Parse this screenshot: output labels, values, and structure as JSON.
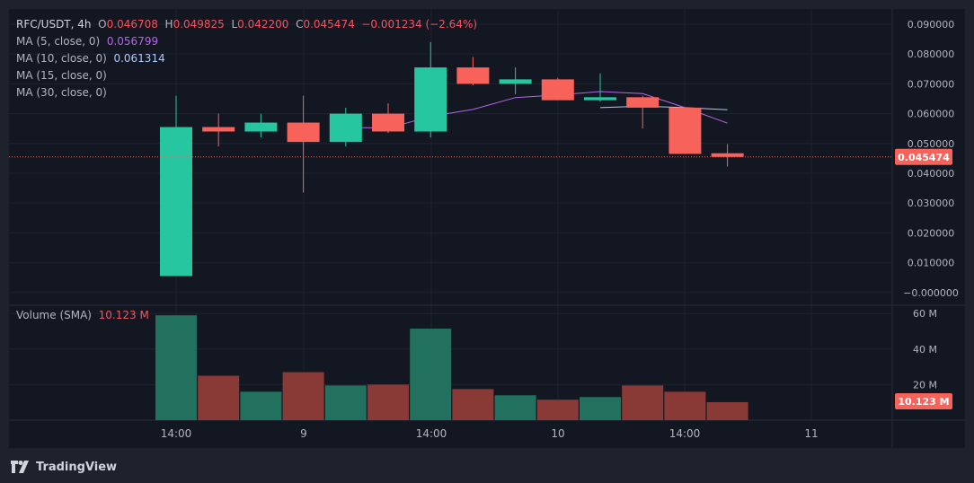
{
  "header": {
    "symbol": "RFC/USDT",
    "interval": "4h",
    "open_label": "O",
    "open": "0.046708",
    "high_label": "H",
    "high": "0.049825",
    "low_label": "L",
    "low": "0.042200",
    "close_label": "C",
    "close": "0.045474",
    "change": "−0.001234 (−2.64%)"
  },
  "indicators": [
    {
      "label": "MA (5, close, 0)",
      "value": "0.056799",
      "color": "#b667e5"
    },
    {
      "label": "MA (10, close, 0)",
      "value": "0.061314",
      "color": "#aec8f5"
    },
    {
      "label": "MA (15, close, 0)",
      "value": "",
      "color": "#d1d4dc"
    },
    {
      "label": "MA (30, close, 0)",
      "value": "",
      "color": "#d1d4dc"
    }
  ],
  "volume_legend": {
    "label": "Volume (SMA)",
    "value": "10.123 M"
  },
  "price_axis": {
    "ticks": [
      "0.090000",
      "0.080000",
      "0.070000",
      "0.060000",
      "0.050000",
      "0.040000",
      "0.030000",
      "0.020000",
      "0.010000",
      "−0.000000"
    ],
    "tick_values": [
      0.09,
      0.08,
      0.07,
      0.06,
      0.05,
      0.04,
      0.03,
      0.02,
      0.01,
      0
    ],
    "last_price_label": "0.045474"
  },
  "volume_axis": {
    "ticks": [
      "60 M",
      "40 M",
      "20 M"
    ],
    "tick_values": [
      60,
      40,
      20
    ],
    "last_volume_label": "10.123 M"
  },
  "time_axis": {
    "labels": [
      "14:00",
      "9",
      "14:00",
      "10",
      "14:00",
      "11"
    ]
  },
  "colors": {
    "up": "#26c6a0",
    "down": "#f7625a",
    "vol_up": "#22715e",
    "vol_down": "#8a3a36",
    "ma5": "#b667e5",
    "ma10": "#aec8f5",
    "last_price": "#f7625a"
  },
  "footer": {
    "brand": "TradingView"
  },
  "chart_data": {
    "type": "candlestick",
    "candles": [
      {
        "o": 0.0055,
        "h": 0.066,
        "l": 0.0055,
        "c": 0.0555
      },
      {
        "o": 0.0555,
        "h": 0.06,
        "l": 0.049,
        "c": 0.054
      },
      {
        "o": 0.054,
        "h": 0.06,
        "l": 0.052,
        "c": 0.057
      },
      {
        "o": 0.057,
        "h": 0.066,
        "l": 0.0335,
        "c": 0.0505
      },
      {
        "o": 0.0505,
        "h": 0.062,
        "l": 0.049,
        "c": 0.06
      },
      {
        "o": 0.06,
        "h": 0.0635,
        "l": 0.0535,
        "c": 0.054
      },
      {
        "o": 0.054,
        "h": 0.084,
        "l": 0.052,
        "c": 0.0755
      },
      {
        "o": 0.0755,
        "h": 0.079,
        "l": 0.0695,
        "c": 0.07
      },
      {
        "o": 0.07,
        "h": 0.0755,
        "l": 0.0665,
        "c": 0.0715
      },
      {
        "o": 0.0715,
        "h": 0.072,
        "l": 0.0645,
        "c": 0.0645
      },
      {
        "o": 0.0645,
        "h": 0.0735,
        "l": 0.064,
        "c": 0.0655
      },
      {
        "o": 0.0655,
        "h": 0.066,
        "l": 0.055,
        "c": 0.062
      },
      {
        "o": 0.062,
        "h": 0.062,
        "l": 0.0465,
        "c": 0.0465
      },
      {
        "o": 0.046708,
        "h": 0.049825,
        "l": 0.0422,
        "c": 0.045474
      }
    ],
    "volume": [
      59,
      25,
      16,
      27,
      19.5,
      20,
      51.5,
      17.5,
      14,
      11.5,
      13,
      19.5,
      16,
      10.123
    ],
    "ma5": [
      null,
      null,
      null,
      null,
      0.0554,
      0.0551,
      0.0591,
      0.0614,
      0.0654,
      0.0663,
      0.0674,
      0.0667,
      0.062,
      0.0568
    ],
    "ma10": [
      null,
      null,
      null,
      null,
      null,
      null,
      null,
      null,
      null,
      null,
      0.062,
      0.0625,
      0.062,
      0.0613
    ],
    "price_range": [
      -0.0035,
      0.0915
    ],
    "volume_range": [
      0,
      65
    ],
    "last_price": 0.045474
  }
}
